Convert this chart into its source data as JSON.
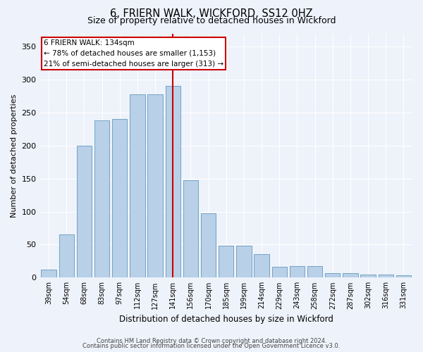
{
  "title": "6, FRIERN WALK, WICKFORD, SS12 0HZ",
  "subtitle": "Size of property relative to detached houses in Wickford",
  "xlabel": "Distribution of detached houses by size in Wickford",
  "ylabel": "Number of detached properties",
  "categories": [
    "39sqm",
    "54sqm",
    "68sqm",
    "83sqm",
    "97sqm",
    "112sqm",
    "127sqm",
    "141sqm",
    "156sqm",
    "170sqm",
    "185sqm",
    "199sqm",
    "214sqm",
    "229sqm",
    "243sqm",
    "258sqm",
    "272sqm",
    "287sqm",
    "302sqm",
    "316sqm",
    "331sqm"
  ],
  "bar_heights": [
    12,
    65,
    200,
    238,
    240,
    278,
    278,
    290,
    148,
    97,
    48,
    48,
    35,
    16,
    17,
    17,
    7,
    7,
    5,
    5,
    4
  ],
  "bar_color": "#b8d0e8",
  "bar_edge_color": "#6699bb",
  "vline_color": "#cc0000",
  "annotation_title": "6 FRIERN WALK: 134sqm",
  "annotation_line1": "← 78% of detached houses are smaller (1,153)",
  "annotation_line2": "21% of semi-detached houses are larger (313) →",
  "annotation_box_color": "#ffffff",
  "annotation_box_edge": "#cc0000",
  "background_color": "#eef2fa",
  "grid_color": "#ffffff",
  "footer1": "Contains HM Land Registry data © Crown copyright and database right 2024.",
  "footer2": "Contains public sector information licensed under the Open Government Licence v3.0.",
  "ylim": [
    0,
    370
  ],
  "yticks": [
    0,
    50,
    100,
    150,
    200,
    250,
    300,
    350
  ]
}
